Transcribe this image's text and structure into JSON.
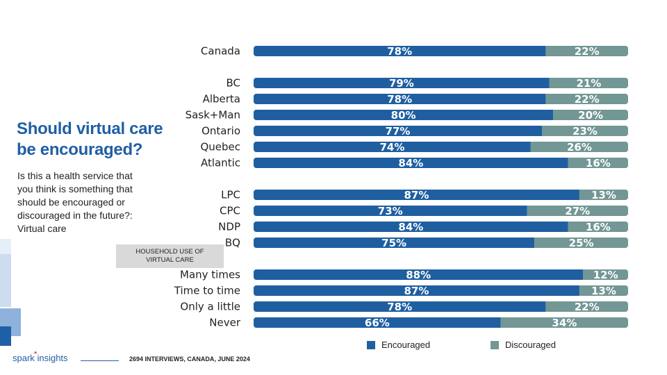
{
  "title": "Should virtual care be encouraged?",
  "subtitle": "Is this a health service that you think is something that should be encouraged or discouraged in the future?: Virtual care",
  "household_box": "HOUSEHOLD USE OF VIRTUAL CARE",
  "footer": {
    "logo_word1": "spark",
    "logo_star": "*",
    "logo_word2": "insights",
    "note": "2694 INTERVIEWS, CANADA, JUNE 2024"
  },
  "colors": {
    "encouraged": "#1f5fa0",
    "discouraged": "#729795",
    "accent": "#1f5fa6"
  },
  "chart_data": {
    "type": "bar",
    "orientation": "horizontal",
    "stacked": true,
    "value_unit": "%",
    "categories": [
      "Canada",
      "BC",
      "Alberta",
      "Sask+Man",
      "Ontario",
      "Quebec",
      "Atlantic",
      "LPC",
      "CPC",
      "NDP",
      "BQ",
      "Many times",
      "Time to time",
      "Only a little",
      "Never"
    ],
    "groups": [
      [
        "Canada"
      ],
      [
        "BC",
        "Alberta",
        "Sask+Man",
        "Ontario",
        "Quebec",
        "Atlantic"
      ],
      [
        "LPC",
        "CPC",
        "NDP",
        "BQ"
      ],
      [
        "Many times",
        "Time to time",
        "Only a little",
        "Never"
      ]
    ],
    "series": [
      {
        "name": "Encouraged",
        "values": [
          78,
          79,
          78,
          80,
          77,
          74,
          84,
          87,
          73,
          84,
          75,
          88,
          87,
          78,
          66
        ]
      },
      {
        "name": "Discouraged",
        "values": [
          22,
          21,
          22,
          20,
          23,
          26,
          16,
          13,
          27,
          16,
          25,
          12,
          13,
          22,
          34
        ]
      }
    ],
    "xlim": [
      0,
      100
    ],
    "legend_position": "bottom"
  }
}
